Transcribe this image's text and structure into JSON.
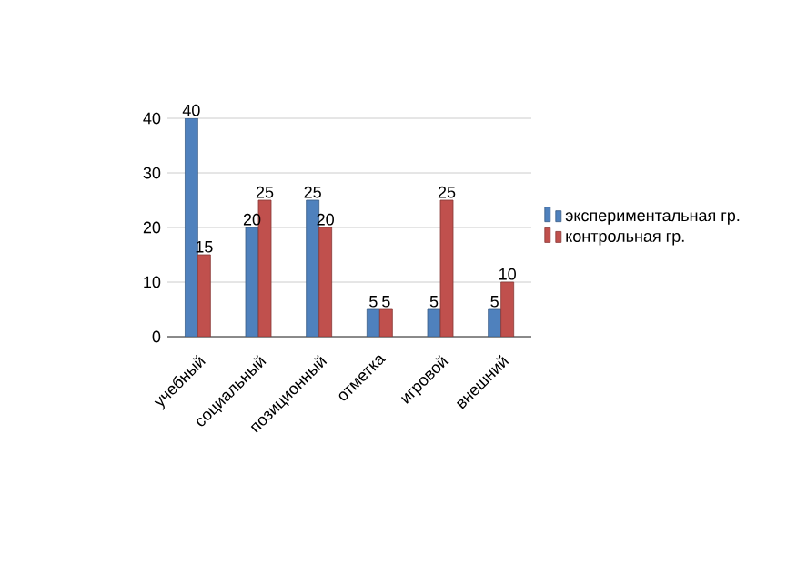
{
  "chart_data": {
    "type": "bar",
    "categories": [
      "учебный",
      "социальный",
      "позиционный",
      "отметка",
      "игровой",
      "внешний"
    ],
    "series": [
      {
        "name": "экспериментальная гр.",
        "color": "#4f81bd",
        "values": [
          40,
          20,
          25,
          5,
          5,
          5
        ]
      },
      {
        "name": "контрольная гр.",
        "color": "#c0504d",
        "values": [
          15,
          25,
          20,
          5,
          25,
          10
        ]
      }
    ],
    "ylim": [
      0,
      40
    ],
    "yticks": [
      0,
      10,
      20,
      30,
      40
    ],
    "grid": "y",
    "legend": "right",
    "data_labels": true
  }
}
